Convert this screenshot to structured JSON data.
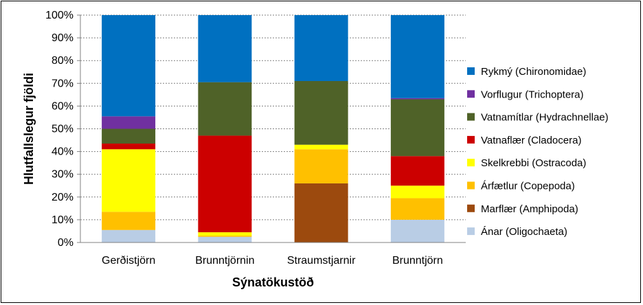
{
  "chart_data": {
    "type": "bar",
    "stacked": true,
    "percent": true,
    "categories": [
      "Gerðistjörn",
      "Brunntjörnin",
      "Straumstjarnir",
      "Brunntjörn"
    ],
    "series": [
      {
        "name": "Ánar (Oligochaeta)",
        "color": "#b9cde5",
        "values": [
          5.5,
          2.5,
          0,
          10
        ]
      },
      {
        "name": "Marflær (Amphipoda)",
        "color": "#9c4a0e",
        "values": [
          0,
          0,
          26,
          0
        ]
      },
      {
        "name": "Árfætlur (Copepoda)",
        "color": "#ffc000",
        "values": [
          8,
          0.5,
          15,
          9.5
        ]
      },
      {
        "name": "Skelkrebbi (Ostracoda)",
        "color": "#ffff00",
        "values": [
          27.5,
          1.5,
          2,
          5.5
        ]
      },
      {
        "name": "Vatnaflær (Cladocera)",
        "color": "#cc0000",
        "values": [
          2.5,
          42.5,
          0,
          13
        ]
      },
      {
        "name": "Vatnamítlar (Hydrachnellae)",
        "color": "#4f6228",
        "values": [
          6.5,
          23.5,
          28,
          25
        ]
      },
      {
        "name": "Vorflugur (Trichoptera)",
        "color": "#7030a0",
        "values": [
          5.5,
          0,
          0,
          0.5
        ]
      },
      {
        "name": "Rykmý (Chironomidae)",
        "color": "#0070c0",
        "values": [
          44.5,
          29.5,
          29,
          36.5
        ]
      }
    ],
    "xlabel": "Sýnatökustöð",
    "ylabel": "Hlutfallslegur fjöldi",
    "yticks": [
      "0%",
      "10%",
      "20%",
      "30%",
      "40%",
      "50%",
      "60%",
      "70%",
      "80%",
      "90%",
      "100%"
    ],
    "ylim": [
      0,
      100
    ],
    "grid": true,
    "legend_position": "right",
    "legend_order": [
      7,
      6,
      5,
      4,
      3,
      2,
      1,
      0
    ]
  }
}
